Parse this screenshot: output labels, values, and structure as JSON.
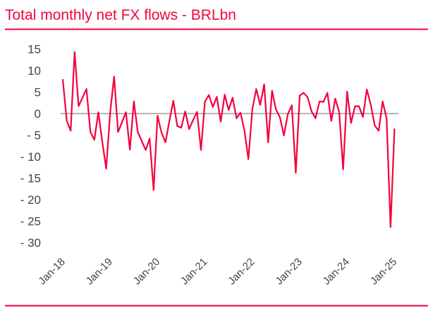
{
  "chart_data": {
    "type": "line",
    "title": "Total monthly net FX flows - BRLbn",
    "xlabel": "",
    "ylabel": "",
    "x_start": "Jan-18",
    "x_end": "Jan-25",
    "frequency": "monthly",
    "x_tick_labels": [
      "Jan-18",
      "Jan-19",
      "Jan-20",
      "Jan-21",
      "Jan-22",
      "Jan-23",
      "Jan-24",
      "Jan-25"
    ],
    "y_ticks": [
      15,
      10,
      5,
      0,
      -5,
      -10,
      -15,
      -20,
      -25,
      -30
    ],
    "y_tick_labels": [
      "15",
      "10",
      "5",
      "0",
      "- 5",
      "- 10",
      "- 15",
      "- 20",
      "- 25",
      "- 30"
    ],
    "ylim": [
      -30,
      15
    ],
    "grid": false,
    "zero_line": true,
    "colors": {
      "line": "#f5003d",
      "title": "#f0063f",
      "rule": "#f5003d",
      "zero_line": "#888888"
    },
    "series": [
      {
        "values": [
          8.0,
          -1.6,
          -4.0,
          14.3,
          1.7,
          3.7,
          5.7,
          -4.3,
          -6.1,
          0.3,
          -6.5,
          -12.8,
          0.2,
          8.6,
          -4.3,
          -2.0,
          0.3,
          -8.4,
          2.8,
          -4.3,
          -6.4,
          -8.5,
          -5.8,
          -17.8,
          -0.5,
          -4.4,
          -6.7,
          -1.7,
          3.0,
          -2.9,
          -3.3,
          0.5,
          -3.6,
          -1.5,
          0.4,
          -8.5,
          2.8,
          4.3,
          1.5,
          3.9,
          -1.9,
          4.4,
          0.8,
          3.7,
          -1.1,
          0.2,
          -3.9,
          -10.6,
          1.0,
          5.7,
          2.0,
          6.8,
          -6.7,
          5.3,
          0.9,
          -0.9,
          -5.1,
          -0.1,
          1.9,
          -13.8,
          4.2,
          4.8,
          3.8,
          0.5,
          -1.1,
          2.8,
          2.7,
          4.8,
          -1.7,
          3.5,
          0.3,
          -13.0,
          5.1,
          -2.2,
          1.7,
          1.7,
          -0.8,
          5.6,
          2.0,
          -2.8,
          -4.0,
          2.8,
          -1.1,
          -26.4,
          -3.5
        ]
      }
    ]
  }
}
